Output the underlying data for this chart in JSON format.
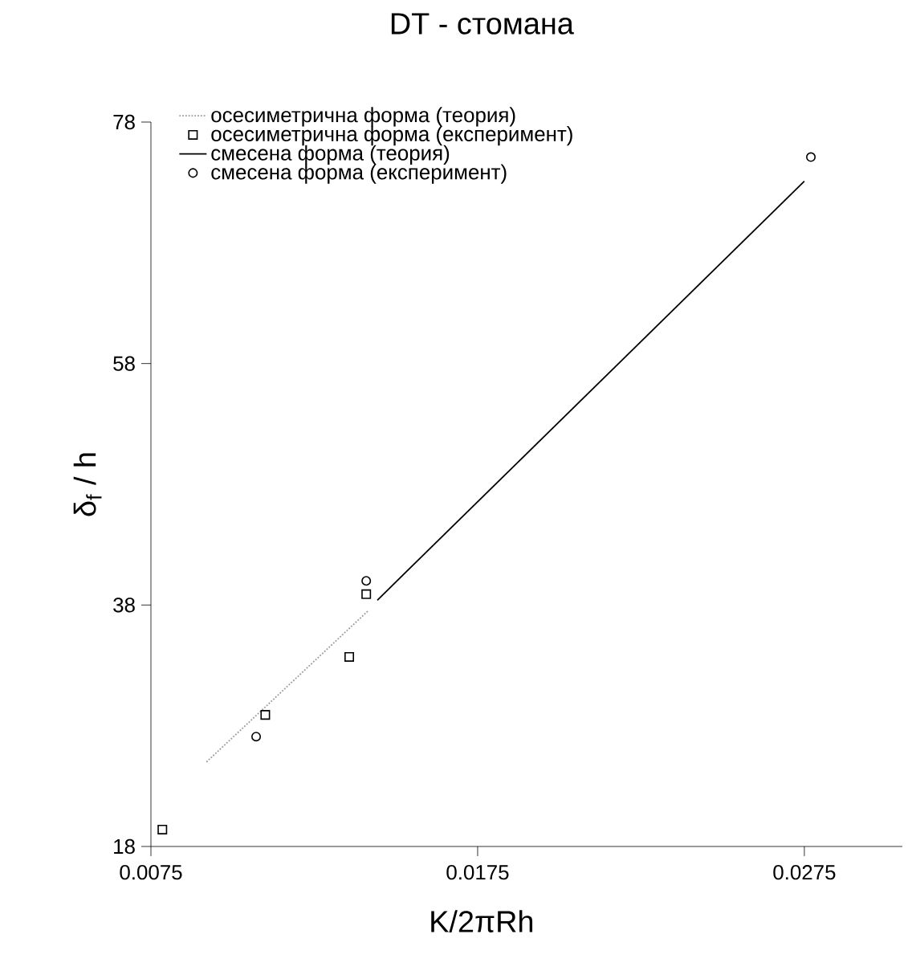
{
  "chart_data": {
    "type": "scatter",
    "title": "DT - стомана",
    "xlabel": "K/2πRh",
    "ylabel": "δ$_{f}$ / h",
    "xlim": [
      0.0075,
      0.0305
    ],
    "ylim": [
      18,
      78
    ],
    "xticks": [
      0.0075,
      0.0175,
      0.0275
    ],
    "yticks": [
      18,
      38,
      58,
      78
    ],
    "legend": "top left",
    "series": [
      {
        "name": "осесиметрична форма (теория)",
        "type": "line",
        "line_style": "dotted",
        "color": "#9a9a9a",
        "x": [
          0.0092,
          0.01414
        ],
        "values": [
          25.0,
          37.5
        ]
      },
      {
        "name": "осесиметрична форма (експеримент)",
        "marker": "square",
        "color": "#000000",
        "x": [
          0.00785,
          0.011,
          0.01357,
          0.01409
        ],
        "values": [
          19.4,
          28.9,
          33.7,
          38.9
        ]
      },
      {
        "name": "смесена форма (теория)",
        "type": "line",
        "line_style": "solid",
        "color": "#000000",
        "x": [
          0.01443,
          0.0275
        ],
        "values": [
          38.4,
          73.1
        ]
      },
      {
        "name": "смесена форма (експеримент)",
        "marker": "circle",
        "color": "#000000",
        "x": [
          0.01072,
          0.01409,
          0.0277
        ],
        "values": [
          27.1,
          40.0,
          75.1
        ]
      }
    ]
  }
}
